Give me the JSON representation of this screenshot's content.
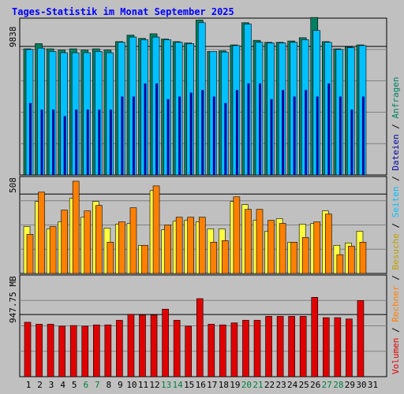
{
  "title": "Tages-Statistik im Monat September 2025",
  "colors": {
    "frame": "#c0c0c0",
    "panel": "#c0c0c0",
    "grid": "#808080",
    "title": "#0000ff",
    "weekend": "#008040",
    "anfragen": "#008060",
    "dateien": "#00c0ff",
    "seiten": "#0000a0",
    "besuche": "#ffff40",
    "rechner": "#ff8000",
    "volumen": "#e00000"
  },
  "right_label": {
    "parts": [
      {
        "text": "Volumen",
        "color": "#e00000"
      },
      {
        "text": " / ",
        "color": "#000000"
      },
      {
        "text": "Rechner",
        "color": "#ff8000"
      },
      {
        "text": " / ",
        "color": "#000000"
      },
      {
        "text": "Besuche",
        "color": "#c0a000"
      },
      {
        "text": " / ",
        "color": "#000000"
      },
      {
        "text": "Seiten",
        "color": "#00c0ff"
      },
      {
        "text": " / ",
        "color": "#000000"
      },
      {
        "text": "Dateien",
        "color": "#0000a0"
      },
      {
        "text": " / ",
        "color": "#000000"
      },
      {
        "text": "Anfragen",
        "color": "#008060"
      }
    ]
  },
  "chart_data": [
    {
      "type": "bar",
      "panel": "top",
      "y_tick_label": "9838",
      "y_tick_value": 9838,
      "ylim": [
        0,
        12000
      ],
      "categories": [
        "1",
        "2",
        "3",
        "4",
        "5",
        "6",
        "7",
        "8",
        "9",
        "10",
        "11",
        "12",
        "13",
        "14",
        "15",
        "16",
        "17",
        "18",
        "19",
        "20",
        "21",
        "22",
        "23",
        "24",
        "25",
        "26",
        "27",
        "28",
        "29",
        "30",
        "31"
      ],
      "weekend_days": [
        "6",
        "7",
        "13",
        "14",
        "20",
        "21",
        "27",
        "28"
      ],
      "series": [
        {
          "name": "Anfragen",
          "values": [
            9650,
            10050,
            9650,
            9550,
            9650,
            9550,
            9650,
            9550,
            10200,
            10700,
            10450,
            10800,
            10400,
            10200,
            10100,
            11850,
            9450,
            9500,
            9950,
            11650,
            10300,
            10150,
            10150,
            10250,
            10500,
            12050,
            10200,
            9650,
            9800,
            9950,
            null
          ]
        },
        {
          "name": "Dateien",
          "values": [
            9600,
            9700,
            9450,
            9350,
            9350,
            9350,
            9450,
            9350,
            10150,
            10550,
            10350,
            10550,
            10350,
            10150,
            10050,
            11650,
            9450,
            9400,
            9900,
            11550,
            10150,
            10100,
            10100,
            10150,
            10350,
            11050,
            10150,
            9600,
            9750,
            9900,
            null
          ]
        },
        {
          "name": "Seiten",
          "values": [
            5500,
            5000,
            5000,
            4500,
            5000,
            5000,
            5000,
            5000,
            6000,
            6000,
            7000,
            7000,
            5800,
            6000,
            6300,
            6500,
            6000,
            5500,
            6500,
            7000,
            7000,
            5800,
            6500,
            6000,
            6500,
            6000,
            7000,
            6000,
            5000,
            6000,
            null
          ]
        }
      ]
    },
    {
      "type": "bar",
      "panel": "middle",
      "y_tick_label": "508",
      "y_tick_value": 508,
      "ylim": [
        0,
        620
      ],
      "categories": [
        "1",
        "2",
        "3",
        "4",
        "5",
        "6",
        "7",
        "8",
        "9",
        "10",
        "11",
        "12",
        "13",
        "14",
        "15",
        "16",
        "17",
        "18",
        "19",
        "20",
        "21",
        "22",
        "23",
        "24",
        "25",
        "26",
        "27",
        "28",
        "29",
        "30",
        "31"
      ],
      "series": [
        {
          "name": "Besuche",
          "values": [
            300,
            460,
            285,
            330,
            480,
            360,
            460,
            290,
            315,
            320,
            180,
            530,
            280,
            335,
            340,
            330,
            285,
            285,
            460,
            440,
            340,
            270,
            350,
            200,
            315,
            320,
            400,
            180,
            195,
            270,
            null
          ]
        },
        {
          "name": "Rechner",
          "values": [
            250,
            520,
            300,
            405,
            590,
            400,
            435,
            200,
            330,
            420,
            180,
            560,
            310,
            360,
            360,
            360,
            200,
            210,
            490,
            410,
            410,
            340,
            320,
            200,
            230,
            330,
            380,
            120,
            175,
            200,
            null
          ]
        }
      ]
    },
    {
      "type": "bar",
      "panel": "bottom",
      "y_tick_label": "947.75 MB",
      "y_tick_value": 947.75,
      "ylim": [
        0,
        1550
      ],
      "categories": [
        "1",
        "2",
        "3",
        "4",
        "5",
        "6",
        "7",
        "8",
        "9",
        "10",
        "11",
        "12",
        "13",
        "14",
        "15",
        "16",
        "17",
        "18",
        "19",
        "20",
        "21",
        "22",
        "23",
        "24",
        "25",
        "26",
        "27",
        "28",
        "29",
        "30",
        "31"
      ],
      "series": [
        {
          "name": "Volumen",
          "values": [
            830,
            800,
            800,
            770,
            780,
            770,
            790,
            790,
            860,
            950,
            940,
            940,
            1030,
            860,
            770,
            1190,
            800,
            790,
            820,
            860,
            860,
            920,
            920,
            920,
            920,
            1210,
            900,
            900,
            880,
            1160,
            null
          ]
        }
      ]
    }
  ]
}
